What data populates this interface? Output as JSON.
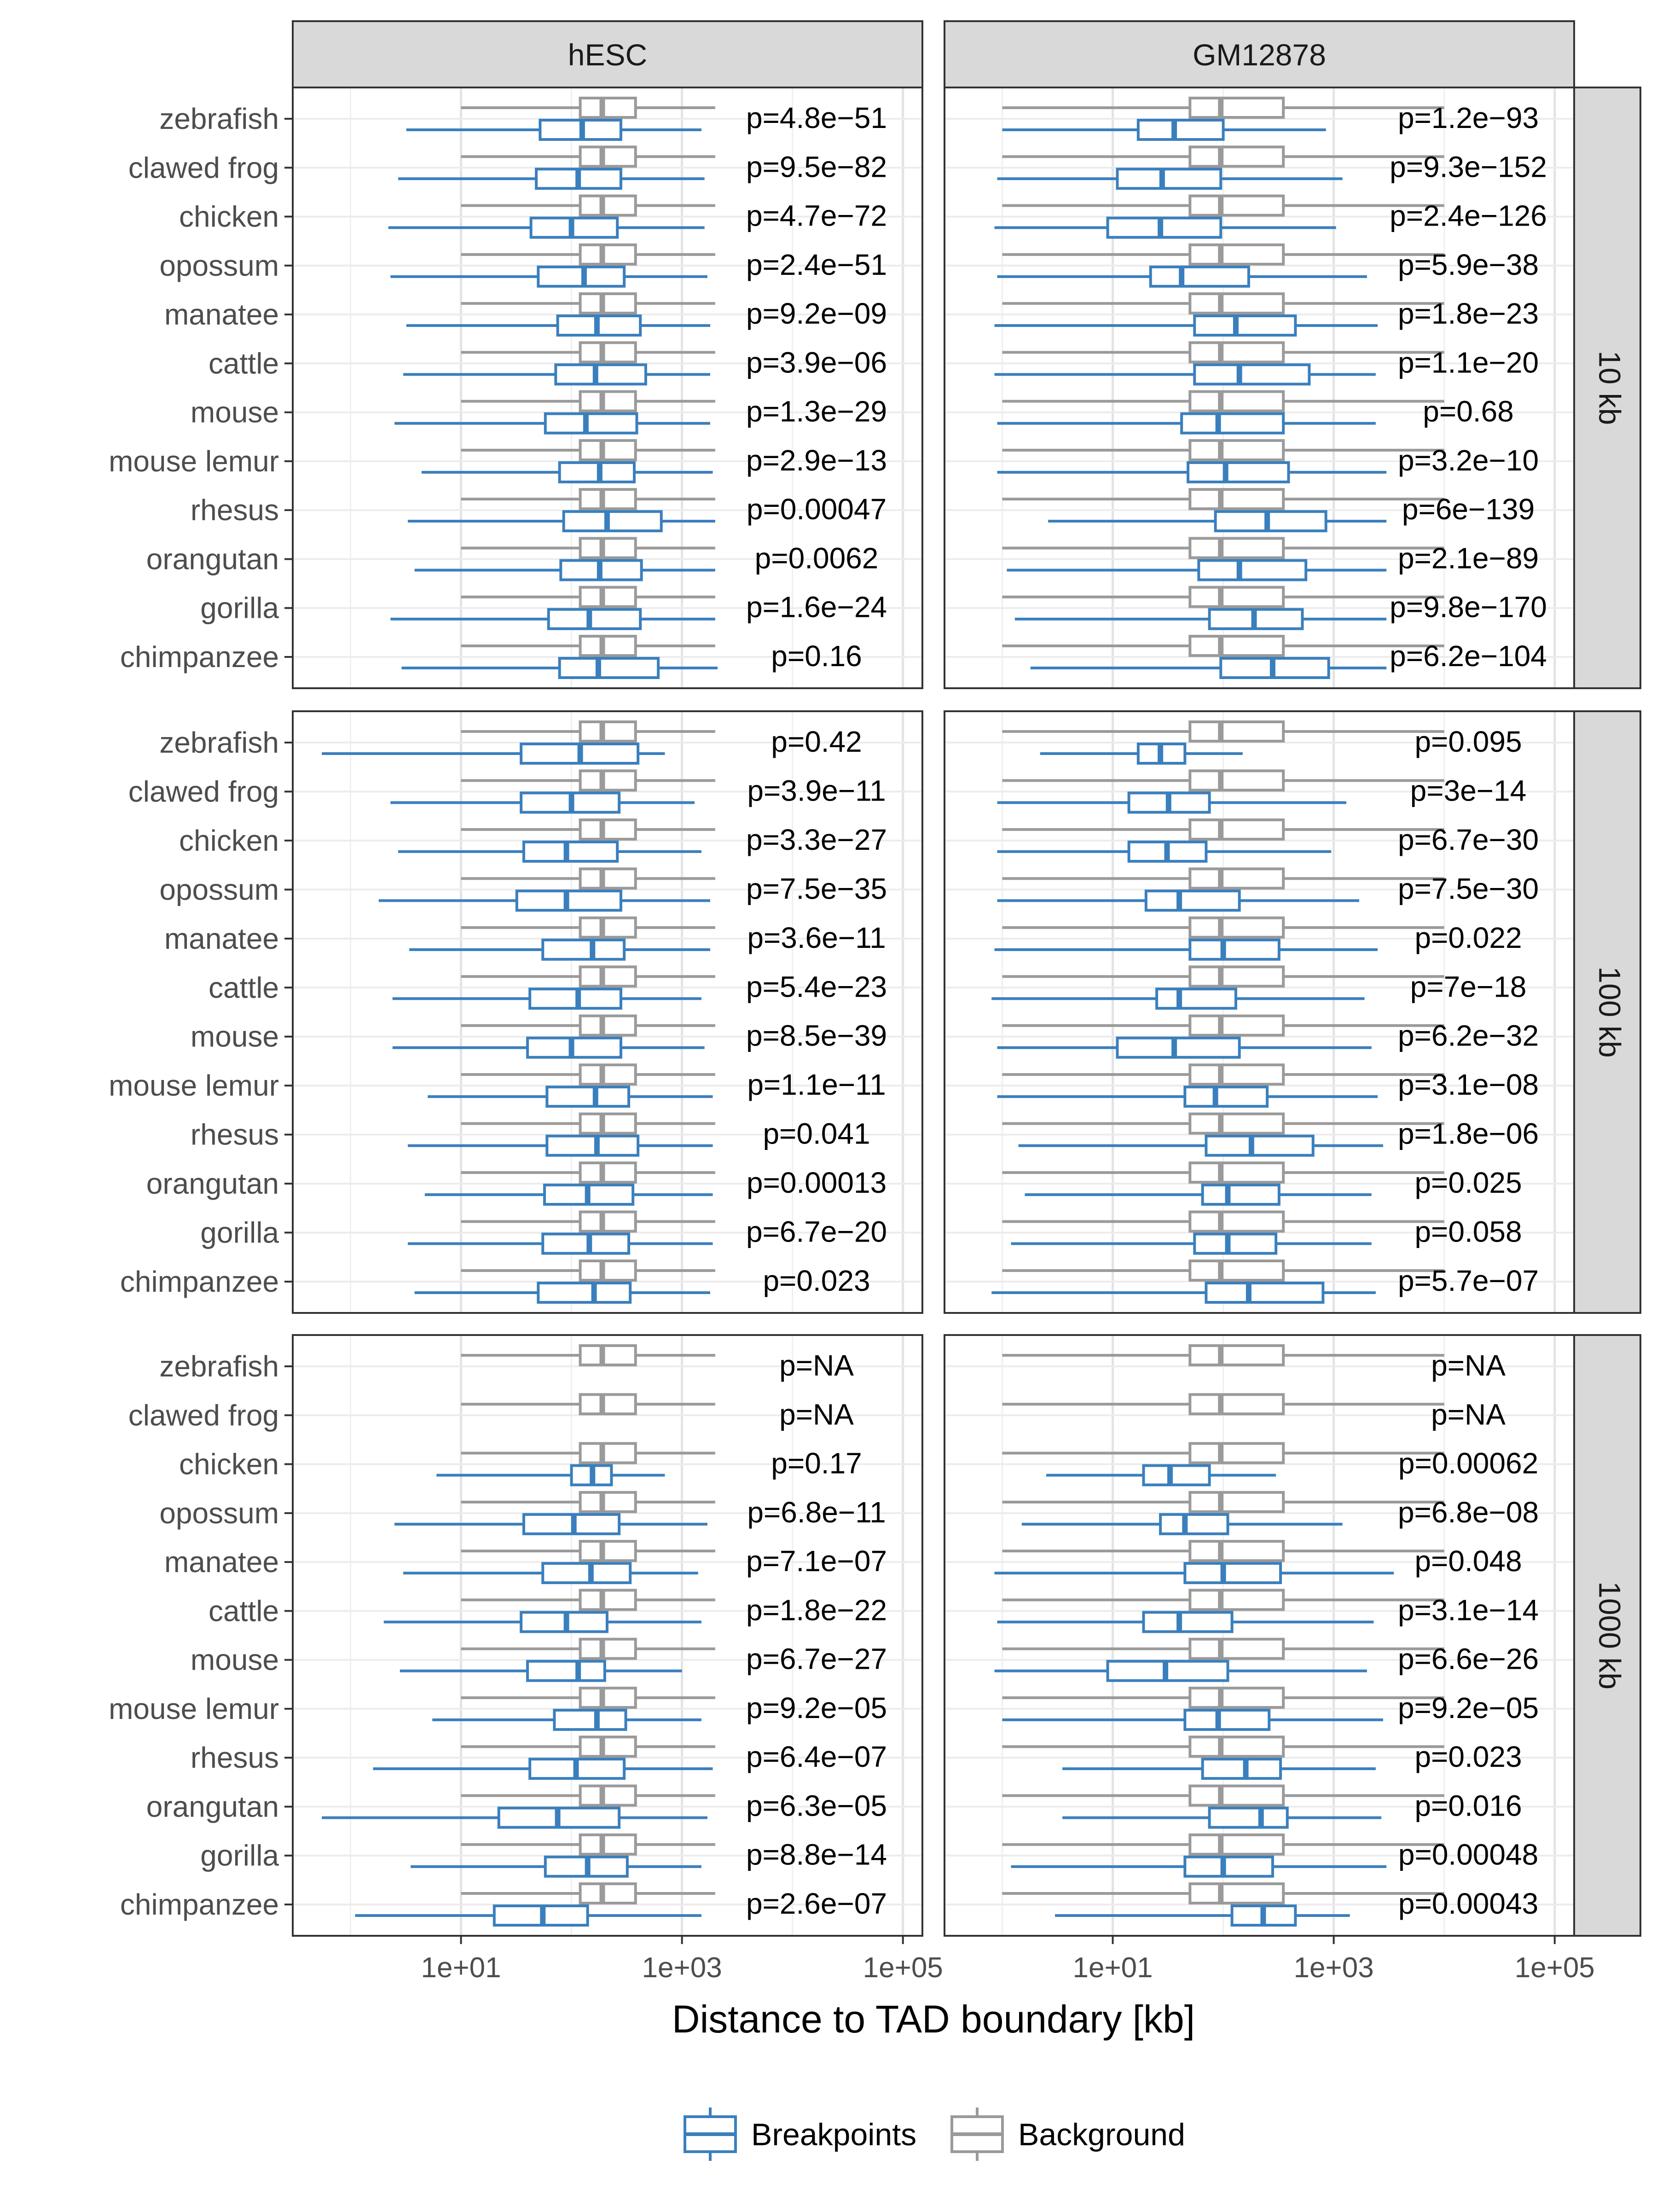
{
  "chart_data": {
    "type": "boxplot",
    "xlabel": "Distance to TAD boundary [kb]",
    "ylabel": "",
    "x_scale": "log10",
    "xlim": [
      0.3,
      150000
    ],
    "x_ticks": [
      {
        "value": 10,
        "label": "1e+01"
      },
      {
        "value": 1000,
        "label": "1e+03"
      },
      {
        "value": 100000,
        "label": "1e+05"
      }
    ],
    "grid": true,
    "legend_position": "bottom",
    "legend": [
      {
        "name": "Breakpoints",
        "color": "#3a7fbd"
      },
      {
        "name": "Background",
        "color": "#9a9a9a"
      }
    ],
    "columns": [
      "hESC",
      "GM12878"
    ],
    "rows": [
      "10 kb",
      "100 kb",
      "1000 kb"
    ],
    "species": [
      "zebrafish",
      "clawed frog",
      "chicken",
      "opossum",
      "manatee",
      "cattle",
      "mouse",
      "mouse lemur",
      "rhesus",
      "orangutan",
      "gorilla",
      "chimpanzee"
    ],
    "background": {
      "hESC": [
        10,
        120,
        190,
        380,
        2000
      ],
      "GM12878": [
        1,
        50,
        95,
        350,
        10000
      ]
    },
    "panels": [
      {
        "column": "hESC",
        "row": "10 kb",
        "p_values": [
          "p=4.8e−51",
          "p=9.5e−82",
          "p=4.7e−72",
          "p=2.4e−51",
          "p=9.2e−09",
          "p=3.9e−06",
          "p=1.3e−29",
          "p=2.9e−13",
          "p=0.00047",
          "p=0.0062",
          "p=1.6e−24",
          "p=0.16"
        ],
        "breakpoints": [
          [
            3.2,
            52,
            125,
            280,
            1500
          ],
          [
            2.7,
            48,
            115,
            280,
            1600
          ],
          [
            2.2,
            43,
            100,
            260,
            1600
          ],
          [
            2.3,
            50,
            130,
            300,
            1700
          ],
          [
            3.2,
            75,
            170,
            420,
            1800
          ],
          [
            3.0,
            72,
            165,
            470,
            1800
          ],
          [
            2.5,
            58,
            135,
            390,
            1800
          ],
          [
            4.4,
            78,
            180,
            370,
            1900
          ],
          [
            3.3,
            85,
            210,
            650,
            2000
          ],
          [
            3.8,
            80,
            180,
            430,
            2000
          ],
          [
            2.3,
            62,
            145,
            420,
            2000
          ],
          [
            2.9,
            78,
            175,
            610,
            2100
          ]
        ]
      },
      {
        "column": "GM12878",
        "row": "10 kb",
        "p_values": [
          "p=1.2e−93",
          "p=9.3e−152",
          "p=2.4e−126",
          "p=5.9e−38",
          "p=1.8e−23",
          "p=1.1e−20",
          "p=0.68",
          "p=3.2e−10",
          "p=6e−139",
          "p=2.1e−89",
          "p=9.8e−170",
          "p=6.2e−104"
        ],
        "breakpoints": [
          [
            1.0,
            17,
            36,
            100,
            850
          ],
          [
            0.9,
            11,
            28,
            95,
            1200
          ],
          [
            0.85,
            9,
            27,
            95,
            1050
          ],
          [
            0.9,
            22,
            42,
            170,
            2000
          ],
          [
            0.85,
            55,
            130,
            450,
            2500
          ],
          [
            0.85,
            55,
            140,
            600,
            2400
          ],
          [
            0.9,
            42,
            90,
            350,
            2400
          ],
          [
            0.9,
            48,
            105,
            390,
            3000
          ],
          [
            2.6,
            85,
            250,
            850,
            3000
          ],
          [
            1.1,
            60,
            140,
            560,
            3000
          ],
          [
            1.3,
            75,
            190,
            520,
            3000
          ],
          [
            1.8,
            95,
            280,
            900,
            3000
          ]
        ]
      },
      {
        "column": "hESC",
        "row": "100 kb",
        "p_values": [
          "p=0.42",
          "p=3.9e−11",
          "p=3.3e−27",
          "p=7.5e−35",
          "p=3.6e−11",
          "p=5.4e−23",
          "p=8.5e−39",
          "p=1.1e−11",
          "p=0.041",
          "p=0.00013",
          "p=6.7e−20",
          "p=0.023"
        ],
        "breakpoints": [
          [
            0.55,
            35,
            120,
            400,
            700
          ],
          [
            2.3,
            35,
            100,
            270,
            1300
          ],
          [
            2.7,
            37,
            90,
            260,
            1500
          ],
          [
            1.8,
            32,
            90,
            280,
            1800
          ],
          [
            3.4,
            55,
            155,
            300,
            1800
          ],
          [
            2.4,
            42,
            115,
            280,
            1500
          ],
          [
            2.4,
            40,
            100,
            280,
            1600
          ],
          [
            5.0,
            60,
            165,
            330,
            1900
          ],
          [
            3.3,
            60,
            170,
            400,
            1900
          ],
          [
            4.7,
            57,
            140,
            360,
            1900
          ],
          [
            3.3,
            55,
            145,
            330,
            1900
          ],
          [
            3.8,
            50,
            160,
            340,
            1800
          ]
        ]
      },
      {
        "column": "GM12878",
        "row": "100 kb",
        "p_values": [
          "p=0.095",
          "p=3e−14",
          "p=6.7e−30",
          "p=7.5e−30",
          "p=0.022",
          "p=7e−18",
          "p=6.2e−32",
          "p=3.1e−08",
          "p=1.8e−06",
          "p=0.025",
          "p=0.058",
          "p=5.7e−07"
        ],
        "breakpoints": [
          [
            2.2,
            17,
            27,
            45,
            150
          ],
          [
            0.9,
            14,
            32,
            75,
            1300
          ],
          [
            0.9,
            14,
            31,
            70,
            950
          ],
          [
            0.9,
            20,
            40,
            140,
            1700
          ],
          [
            0.85,
            50,
            100,
            320,
            2500
          ],
          [
            0.8,
            25,
            40,
            130,
            1900
          ],
          [
            0.9,
            11,
            36,
            140,
            2200
          ],
          [
            0.9,
            45,
            85,
            250,
            2500
          ],
          [
            1.4,
            70,
            180,
            650,
            2800
          ],
          [
            1.6,
            65,
            110,
            320,
            2200
          ],
          [
            1.2,
            55,
            110,
            300,
            2200
          ],
          [
            0.8,
            70,
            170,
            800,
            2400
          ]
        ]
      },
      {
        "column": "hESC",
        "row": "1000 kb",
        "p_values": [
          "p=NA",
          "p=NA",
          "p=0.17",
          "p=6.8e−11",
          "p=7.1e−07",
          "p=1.8e−22",
          "p=6.7e−27",
          "p=9.2e−05",
          "p=6.4e−07",
          "p=6.3e−05",
          "p=8.8e−14",
          "p=2.6e−07"
        ],
        "breakpoints": [
          null,
          null,
          [
            6,
            100,
            155,
            230,
            700
          ],
          [
            2.5,
            37,
            105,
            270,
            1700
          ],
          [
            3.0,
            55,
            150,
            340,
            1400
          ],
          [
            2.0,
            35,
            90,
            210,
            1500
          ],
          [
            2.8,
            40,
            115,
            200,
            1000
          ],
          [
            5.5,
            70,
            170,
            310,
            1500
          ],
          [
            1.6,
            42,
            110,
            300,
            1900
          ],
          [
            0.55,
            22,
            75,
            270,
            1700
          ],
          [
            3.5,
            58,
            140,
            320,
            1500
          ],
          [
            1.1,
            20,
            55,
            140,
            1500
          ]
        ]
      },
      {
        "column": "GM12878",
        "row": "1000 kb",
        "p_values": [
          "p=NA",
          "p=NA",
          "p=0.00062",
          "p=6.8e−08",
          "p=0.048",
          "p=3.1e−14",
          "p=6.6e−26",
          "p=9.2e−05",
          "p=0.023",
          "p=0.016",
          "p=0.00048",
          "p=0.00043"
        ],
        "breakpoints": [
          null,
          null,
          [
            2.5,
            19,
            33,
            75,
            300
          ],
          [
            1.5,
            27,
            45,
            110,
            1200
          ],
          [
            0.85,
            45,
            100,
            330,
            3500
          ],
          [
            0.9,
            19,
            40,
            120,
            2300
          ],
          [
            0.85,
            9,
            30,
            110,
            2000
          ],
          [
            1.0,
            45,
            90,
            260,
            2800
          ],
          [
            3.5,
            65,
            160,
            330,
            2400
          ],
          [
            3.5,
            75,
            220,
            380,
            2700
          ],
          [
            1.2,
            45,
            100,
            280,
            3000
          ],
          [
            3.0,
            120,
            230,
            450,
            1400
          ]
        ]
      }
    ]
  }
}
